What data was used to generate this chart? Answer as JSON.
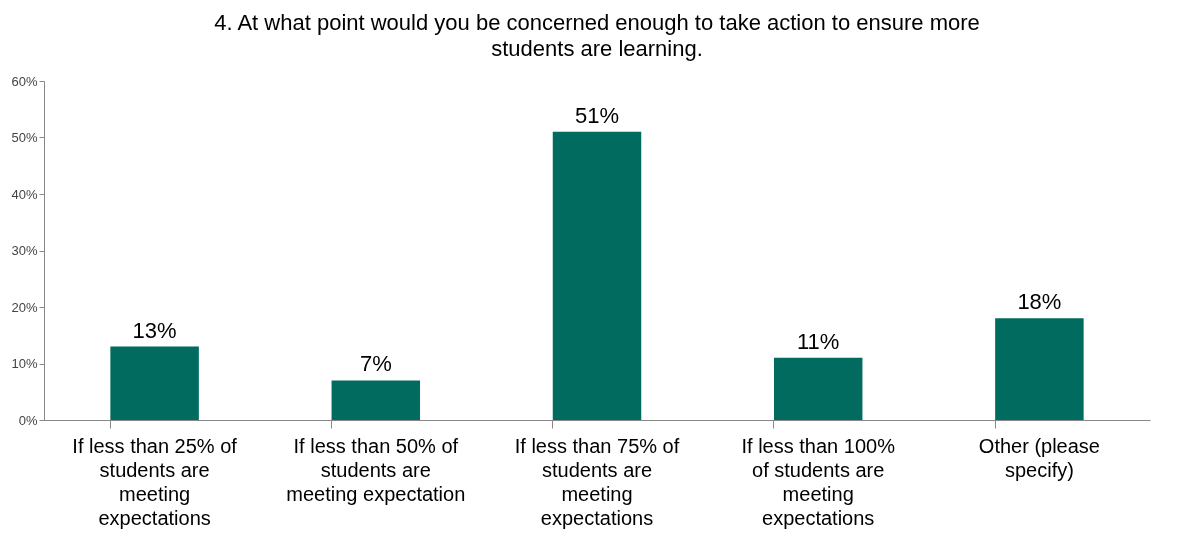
{
  "chart_data": {
    "type": "bar",
    "title": "4.  At what point would you be concerned enough to take action to ensure more students are learning.",
    "categories": [
      "If less than 25% of students are meeting expectations",
      "If less than 50% of students are meeting expectation",
      "If less than 75% of students are meeting expectations",
      "If less than 100% of students are meeting expectations",
      "Other (please specify)"
    ],
    "values": [
      13,
      7,
      51,
      11,
      18
    ],
    "value_labels": [
      "13%",
      "7%",
      "51%",
      "11%",
      "18%"
    ],
    "color": "#006b5e",
    "ylim": [
      0,
      60
    ],
    "yticks": [
      {
        "value": 0,
        "label": "0%"
      },
      {
        "value": 10,
        "label": "10%"
      },
      {
        "value": 20,
        "label": "20%"
      },
      {
        "value": 30,
        "label": "30%"
      },
      {
        "value": 40,
        "label": "40%"
      },
      {
        "value": 50,
        "label": "50%"
      },
      {
        "value": 60,
        "label": "60%"
      }
    ],
    "grid": false
  }
}
